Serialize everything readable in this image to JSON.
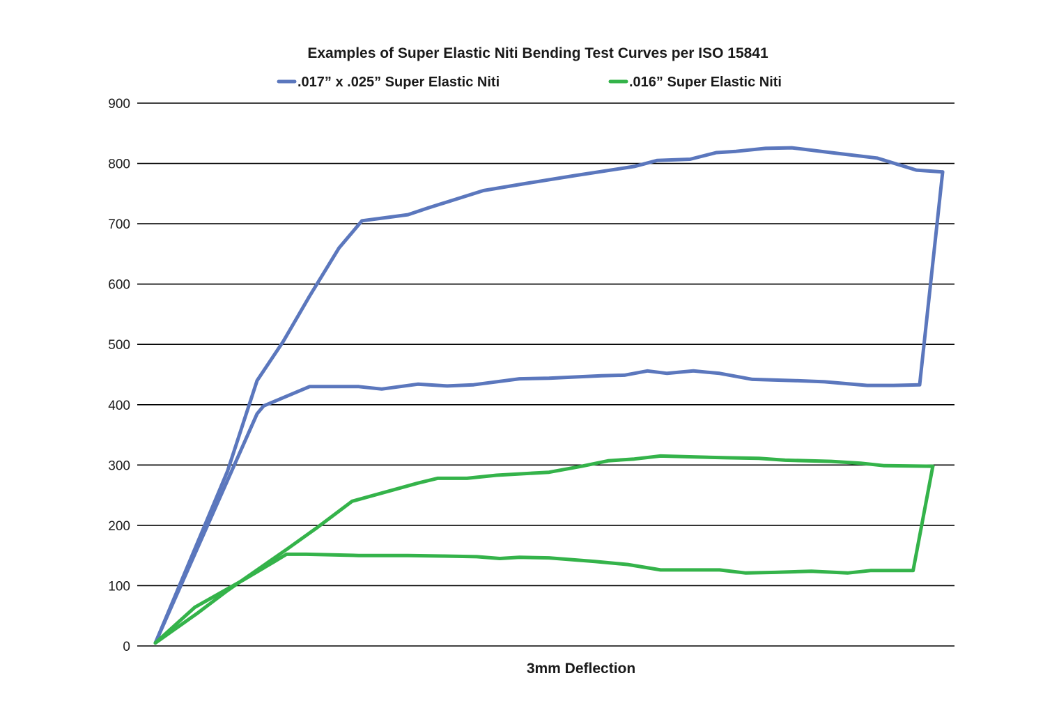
{
  "chart_data": {
    "type": "line",
    "title": "Examples of Super Elastic Niti Bending Test Curves per ISO 15841",
    "xlabel": "3mm Deflection",
    "ylabel": "",
    "ylim": [
      0,
      900
    ],
    "yticks": [
      "0",
      "100",
      "200",
      "300",
      "400",
      "500",
      "600",
      "700",
      "800",
      "900"
    ],
    "grid": "horizontal",
    "legend_position": "top",
    "series": [
      {
        "name": ".017” x .025” Super Elastic Niti",
        "color": "#5b77bd",
        "loading": [
          [
            0,
            5
          ],
          [
            0.11,
            290
          ],
          [
            0.155,
            440
          ],
          [
            0.195,
            505
          ],
          [
            0.235,
            580
          ],
          [
            0.28,
            660
          ],
          [
            0.315,
            705
          ],
          [
            0.35,
            710
          ],
          [
            0.385,
            715
          ],
          [
            0.415,
            726
          ],
          [
            0.5,
            755
          ],
          [
            0.56,
            766
          ],
          [
            0.64,
            780
          ],
          [
            0.73,
            795
          ],
          [
            0.765,
            805
          ],
          [
            0.815,
            807
          ],
          [
            0.855,
            818
          ],
          [
            0.885,
            820
          ],
          [
            0.93,
            825
          ],
          [
            0.97,
            826
          ],
          [
            1.03,
            818
          ],
          [
            1.1,
            809
          ],
          [
            1.16,
            789
          ],
          [
            1.2,
            786
          ]
        ],
        "unloading": [
          [
            1.2,
            786
          ],
          [
            1.165,
            433
          ],
          [
            1.125,
            432
          ],
          [
            1.085,
            432
          ],
          [
            1.02,
            438
          ],
          [
            0.975,
            440
          ],
          [
            0.91,
            442
          ],
          [
            0.86,
            452
          ],
          [
            0.82,
            456
          ],
          [
            0.78,
            452
          ],
          [
            0.75,
            456
          ],
          [
            0.715,
            449
          ],
          [
            0.68,
            448
          ],
          [
            0.6,
            444
          ],
          [
            0.555,
            443
          ],
          [
            0.485,
            433
          ],
          [
            0.445,
            431
          ],
          [
            0.4,
            434
          ],
          [
            0.345,
            426
          ],
          [
            0.31,
            430
          ],
          [
            0.235,
            430
          ],
          [
            0.165,
            398
          ],
          [
            0.155,
            385
          ],
          [
            0,
            5
          ]
        ]
      },
      {
        "name": ".016” Super Elastic Niti",
        "color": "#34b34a",
        "loading": [
          [
            0,
            5
          ],
          [
            0.065,
            55
          ],
          [
            0.11,
            92
          ],
          [
            0.2,
            160
          ],
          [
            0.245,
            195
          ],
          [
            0.3,
            240
          ],
          [
            0.4,
            270
          ],
          [
            0.43,
            278
          ],
          [
            0.475,
            278
          ],
          [
            0.52,
            283
          ],
          [
            0.6,
            288
          ],
          [
            0.65,
            298
          ],
          [
            0.69,
            307
          ],
          [
            0.73,
            310
          ],
          [
            0.77,
            315
          ],
          [
            0.87,
            312
          ],
          [
            0.92,
            311
          ],
          [
            0.96,
            308
          ],
          [
            1.03,
            306
          ],
          [
            1.075,
            303
          ],
          [
            1.11,
            299
          ],
          [
            1.185,
            298
          ]
        ],
        "unloading": [
          [
            1.185,
            298
          ],
          [
            1.155,
            125
          ],
          [
            1.09,
            125
          ],
          [
            1.055,
            121
          ],
          [
            1.0,
            124
          ],
          [
            0.945,
            122
          ],
          [
            0.9,
            121
          ],
          [
            0.86,
            126
          ],
          [
            0.77,
            126
          ],
          [
            0.72,
            135
          ],
          [
            0.67,
            140
          ],
          [
            0.6,
            146
          ],
          [
            0.555,
            147
          ],
          [
            0.525,
            145
          ],
          [
            0.49,
            148
          ],
          [
            0.44,
            149
          ],
          [
            0.385,
            150
          ],
          [
            0.31,
            150
          ],
          [
            0.23,
            152
          ],
          [
            0.2,
            152
          ],
          [
            0.18,
            139
          ],
          [
            0.135,
            110
          ],
          [
            0.06,
            64
          ],
          [
            0,
            5
          ]
        ]
      }
    ]
  }
}
